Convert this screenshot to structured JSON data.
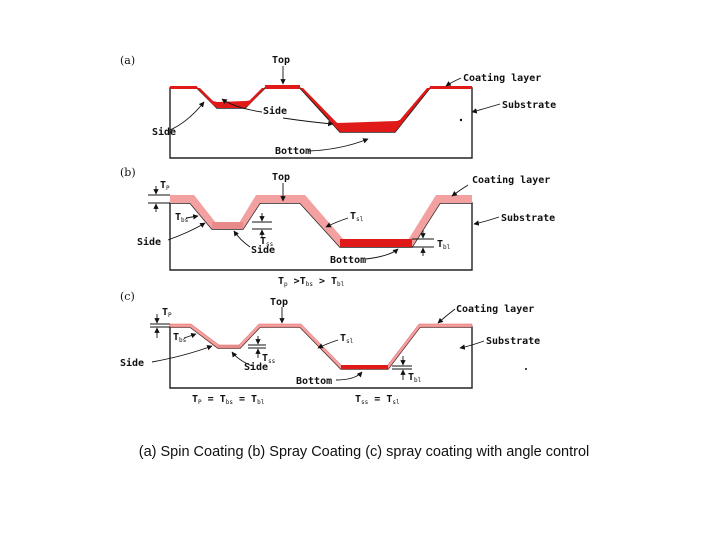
{
  "colors": {
    "coating": "#e01919",
    "coating_light": "#f2a0a0",
    "line": "#222222"
  },
  "panel_a": {
    "tag": "(a)",
    "labels": {
      "top": "Top",
      "side_mid": "Side",
      "side_left": "Side",
      "bottom": "Bottom",
      "coating_layer": "Coating layer",
      "substrate": "Substrate"
    }
  },
  "panel_b": {
    "tag": "(b)",
    "labels": {
      "top": "Top",
      "side_left": "Side",
      "side_mid": "Side",
      "bottom": "Bottom",
      "coating_layer": "Coating layer",
      "substrate": "Substrate"
    },
    "thickness": {
      "tp_main": "T",
      "tp_sub": "P",
      "tbs_main": "T",
      "tbs_sub": "bs",
      "tsl_main": "T",
      "tsl_sub": "sl",
      "tss_main": "T",
      "tss_sub": "ss",
      "tbl_main": "T",
      "tbl_sub": "bl"
    },
    "relation": {
      "p1": "T",
      "s1": "p",
      "op1": " >T",
      "s2": "bs",
      "op2": " > T",
      "s3": "bl"
    }
  },
  "panel_c": {
    "tag": "(c)",
    "labels": {
      "top": "Top",
      "side_left": "Side",
      "side_mid": "Side",
      "bottom": "Bottom",
      "coating_layer": "Coating layer",
      "substrate": "Substrate"
    },
    "thickness": {
      "tp_main": "T",
      "tp_sub": "P",
      "tbs_main": "T",
      "tbs_sub": "bs",
      "tsl_main": "T",
      "tsl_sub": "sl",
      "tss_main": "T",
      "tss_sub": "ss",
      "tbl_main": "T",
      "tbl_sub": "bl"
    },
    "relation_left": {
      "p1": "T",
      "s1": "P",
      "op1": " = T",
      "s2": "bs",
      "op2": " = T",
      "s3": "bl"
    },
    "relation_right": {
      "p1": "T",
      "s1": "ss",
      "op1": " = T",
      "s2": "sl"
    }
  },
  "caption": "(a) Spin Coating (b) Spray Coating (c) spray coating with angle control"
}
